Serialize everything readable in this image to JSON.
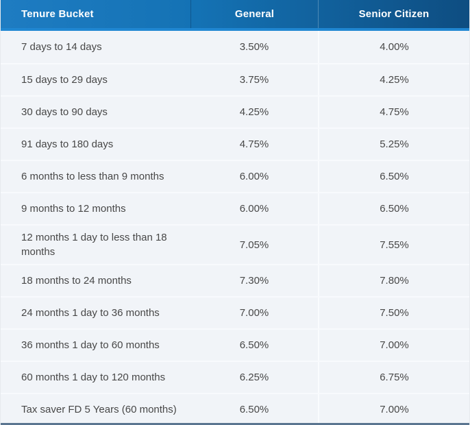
{
  "header": {
    "columns": [
      "Tenure Bucket",
      "General",
      "Senior Citizen"
    ]
  },
  "rows": [
    {
      "tenure": "7 days to 14 days",
      "general": "3.50%",
      "senior": "4.00%"
    },
    {
      "tenure": "15 days to 29 days",
      "general": "3.75%",
      "senior": "4.25%"
    },
    {
      "tenure": "30 days to 90 days",
      "general": "4.25%",
      "senior": "4.75%"
    },
    {
      "tenure": "91 days to 180 days",
      "general": "4.75%",
      "senior": "5.25%"
    },
    {
      "tenure": "6 months to less than 9 months",
      "general": "6.00%",
      "senior": "6.50%"
    },
    {
      "tenure": "9 months to 12 months",
      "general": "6.00%",
      "senior": "6.50%"
    },
    {
      "tenure": "12 months 1 day to less than 18 months",
      "general": "7.05%",
      "senior": "7.55%"
    },
    {
      "tenure": "18 months to 24 months",
      "general": "7.30%",
      "senior": "7.80%"
    },
    {
      "tenure": "24 months 1 day to 36 months",
      "general": "7.00%",
      "senior": "7.50%"
    },
    {
      "tenure": "36 months 1 day to 60 months",
      "general": "6.50%",
      "senior": "7.00%"
    },
    {
      "tenure": "60 months 1 day to 120 months",
      "general": "6.25%",
      "senior": "6.75%"
    },
    {
      "tenure": "Tax saver FD 5 Years (60 months)",
      "general": "6.50%",
      "senior": "7.00%"
    }
  ],
  "colors": {
    "header_gradient_start": "#1e7cc2",
    "header_gradient_end": "#0e4d81",
    "header_underline": "#2087d2",
    "header_text": "#ffffff",
    "body_background": "#f1f4f8",
    "row_divider": "#f8fafd",
    "column_divider": "#fafcfe",
    "body_text": "#474747",
    "bottom_edge": "#5a7590"
  },
  "chart_data": {
    "type": "table",
    "columns": [
      "Tenure Bucket",
      "General",
      "Senior Citizen"
    ],
    "rows": [
      [
        "7 days to 14 days",
        "3.50%",
        "4.00%"
      ],
      [
        "15 days to 29 days",
        "3.75%",
        "4.25%"
      ],
      [
        "30 days to 90 days",
        "4.25%",
        "4.75%"
      ],
      [
        "91 days to 180 days",
        "4.75%",
        "5.25%"
      ],
      [
        "6 months to less than 9 months",
        "6.00%",
        "6.50%"
      ],
      [
        "9 months to 12 months",
        "6.00%",
        "6.50%"
      ],
      [
        "12 months 1 day to less than 18 months",
        "7.05%",
        "7.55%"
      ],
      [
        "18 months to 24 months",
        "7.30%",
        "7.80%"
      ],
      [
        "24 months 1 day to 36 months",
        "7.00%",
        "7.50%"
      ],
      [
        "36 months 1 day to 60 months",
        "6.50%",
        "7.00%"
      ],
      [
        "60 months 1 day to 120 months",
        "6.25%",
        "6.75%"
      ],
      [
        "Tax saver FD 5 Years (60 months)",
        "6.50%",
        "7.00%"
      ]
    ]
  }
}
